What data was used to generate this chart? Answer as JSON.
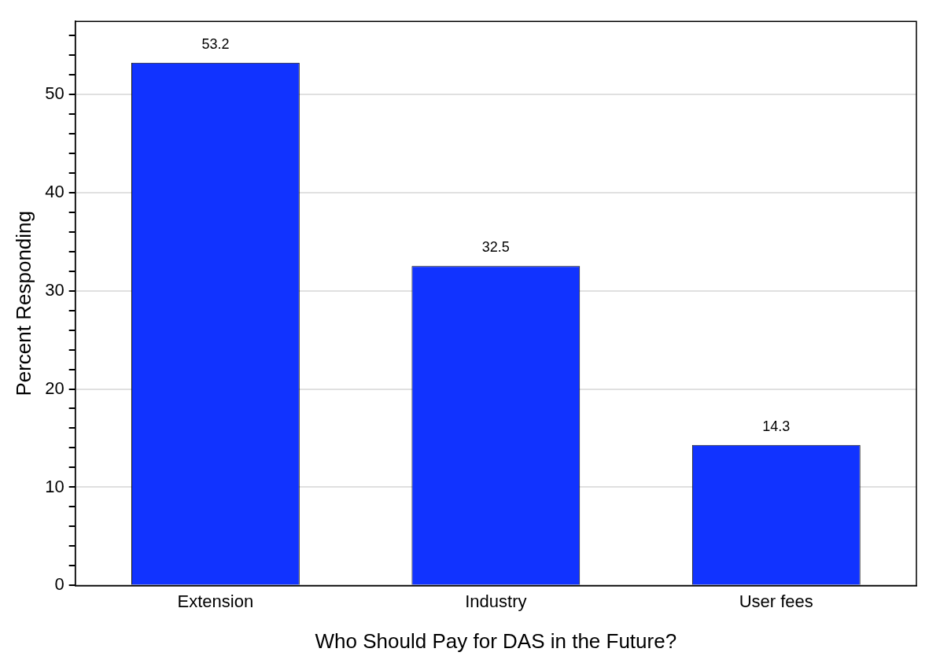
{
  "chart_data": {
    "type": "bar",
    "xlabel": "Who Should Pay for DAS in the Future?",
    "ylabel": "Percent Responding",
    "categories": [
      "Extension",
      "Industry",
      "User fees"
    ],
    "values": [
      53.2,
      32.5,
      14.3
    ],
    "color": "#1133ff",
    "data_labels": true,
    "ylim": [
      0,
      57.4
    ],
    "yticks": [
      0,
      {
        "value": 2,
        "label": null
      },
      {
        "value": 4,
        "label": null
      },
      {
        "value": 6,
        "label": null
      },
      {
        "value": 8,
        "label": null
      },
      10,
      {
        "value": 12,
        "label": null
      },
      {
        "value": 14,
        "label": null
      },
      {
        "value": 16,
        "label": null
      },
      {
        "value": 18,
        "label": null
      },
      20,
      {
        "value": 22,
        "label": null
      },
      {
        "value": 24,
        "label": null
      },
      {
        "value": 26,
        "label": null
      },
      {
        "value": 28,
        "label": null
      },
      30,
      {
        "value": 32,
        "label": null
      },
      {
        "value": 34,
        "label": null
      },
      {
        "value": 36,
        "label": null
      },
      {
        "value": 38,
        "label": null
      },
      40,
      {
        "value": 42,
        "label": null
      },
      {
        "value": 44,
        "label": null
      },
      {
        "value": 46,
        "label": null
      },
      {
        "value": 48,
        "label": null
      },
      50,
      {
        "value": 52,
        "label": null
      },
      {
        "value": 54,
        "label": null
      },
      {
        "value": 56,
        "label": null
      }
    ],
    "grid": "y",
    "legend": false
  }
}
